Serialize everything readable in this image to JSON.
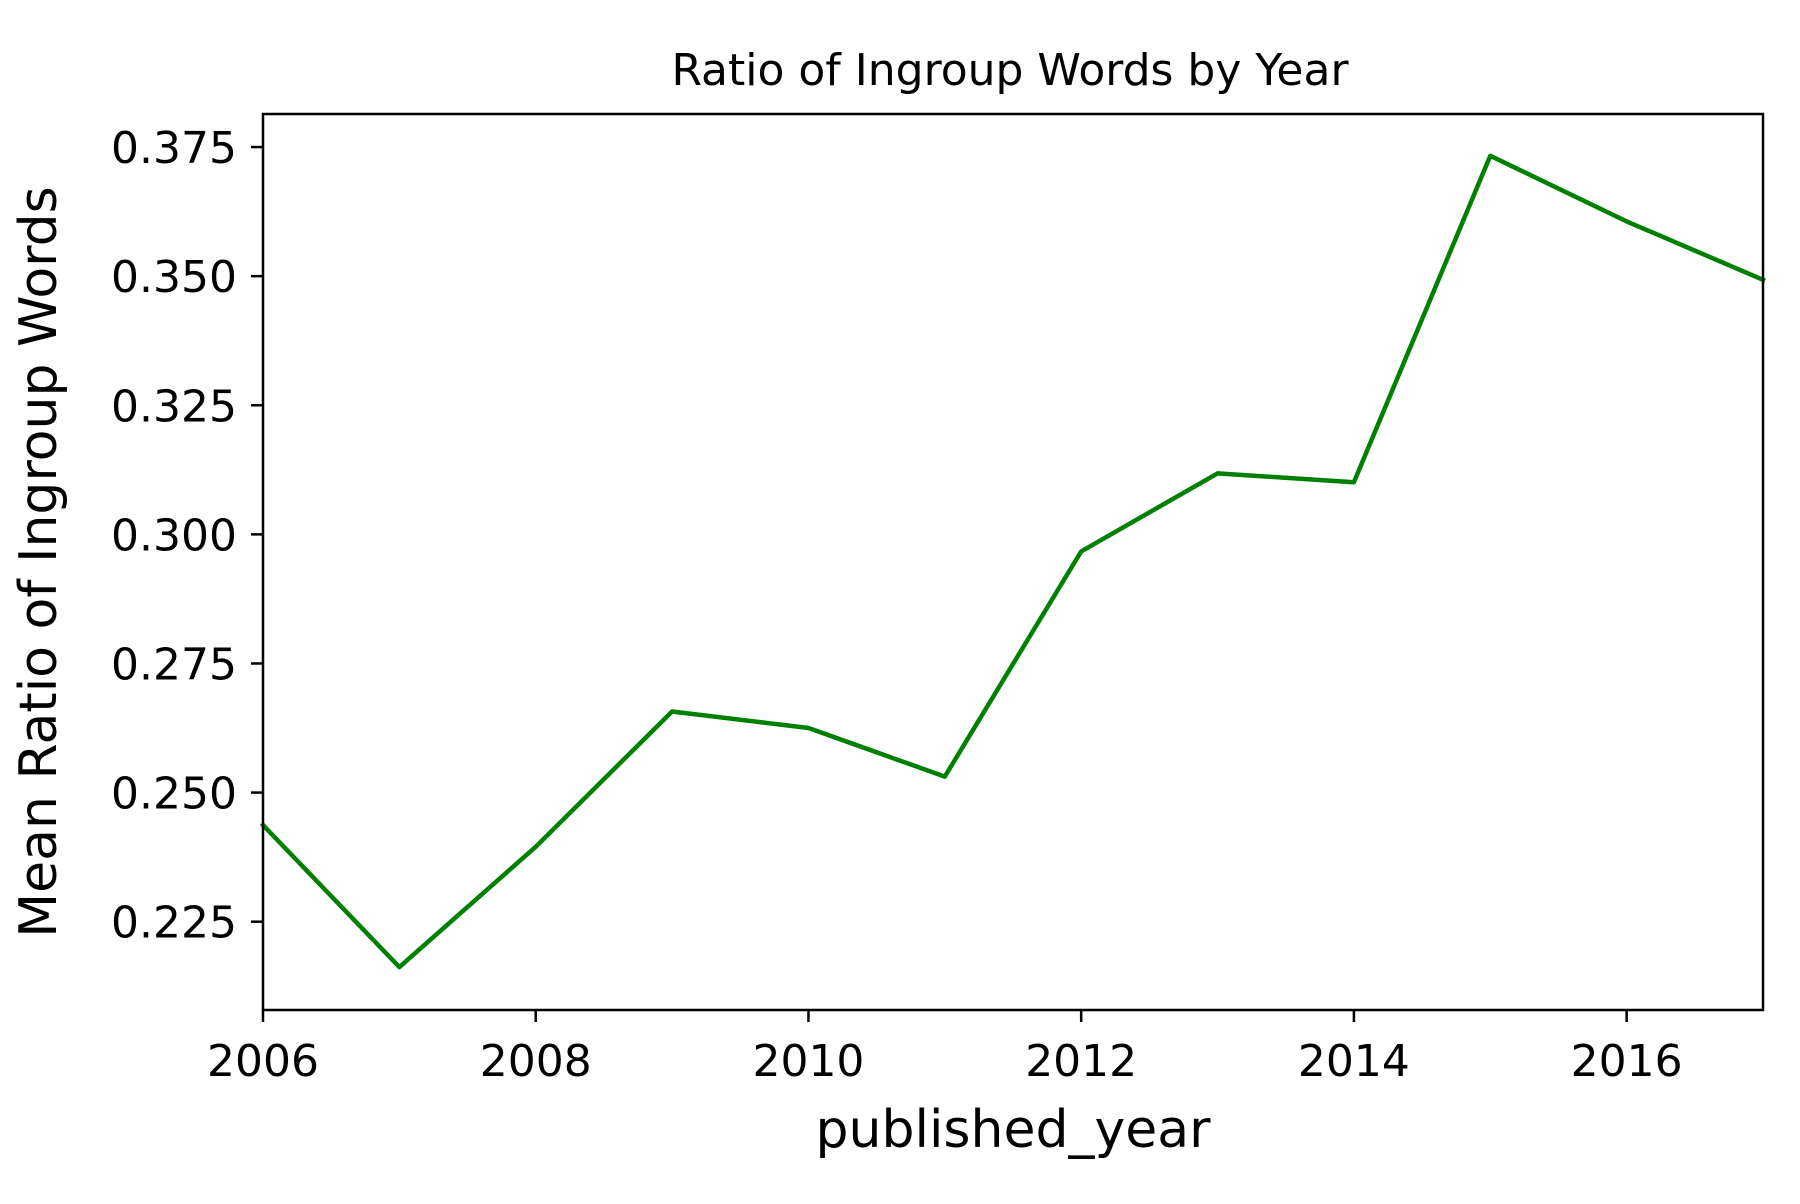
{
  "chart_data": {
    "type": "line",
    "title": "Ratio of Ingroup Words by Year",
    "xlabel": "published_year",
    "ylabel": "Mean Ratio of Ingroup Words",
    "x": [
      2006,
      2007,
      2008,
      2009,
      2010,
      2011,
      2012,
      2013,
      2014,
      2015,
      2016,
      2017
    ],
    "series": [
      {
        "values": [
          0.2437,
          0.2162,
          0.2395,
          0.2657,
          0.2625,
          0.2531,
          0.2967,
          0.3118,
          0.3101,
          0.3733,
          0.3606,
          0.3493
        ],
        "color": "#008000"
      }
    ],
    "xlim": [
      2006,
      2017
    ],
    "ylim": [
      0.2079,
      0.3814
    ],
    "xticks": [
      2006,
      2008,
      2010,
      2012,
      2014,
      2016
    ],
    "xtick_labels": [
      "2006",
      "2008",
      "2010",
      "2012",
      "2014",
      "2016"
    ],
    "yticks": [
      0.225,
      0.25,
      0.275,
      0.3,
      0.325,
      0.35,
      0.375
    ],
    "ytick_labels": [
      "0.225",
      "0.250",
      "0.275",
      "0.300",
      "0.325",
      "0.350",
      "0.375"
    ],
    "grid": false,
    "legend": false
  }
}
